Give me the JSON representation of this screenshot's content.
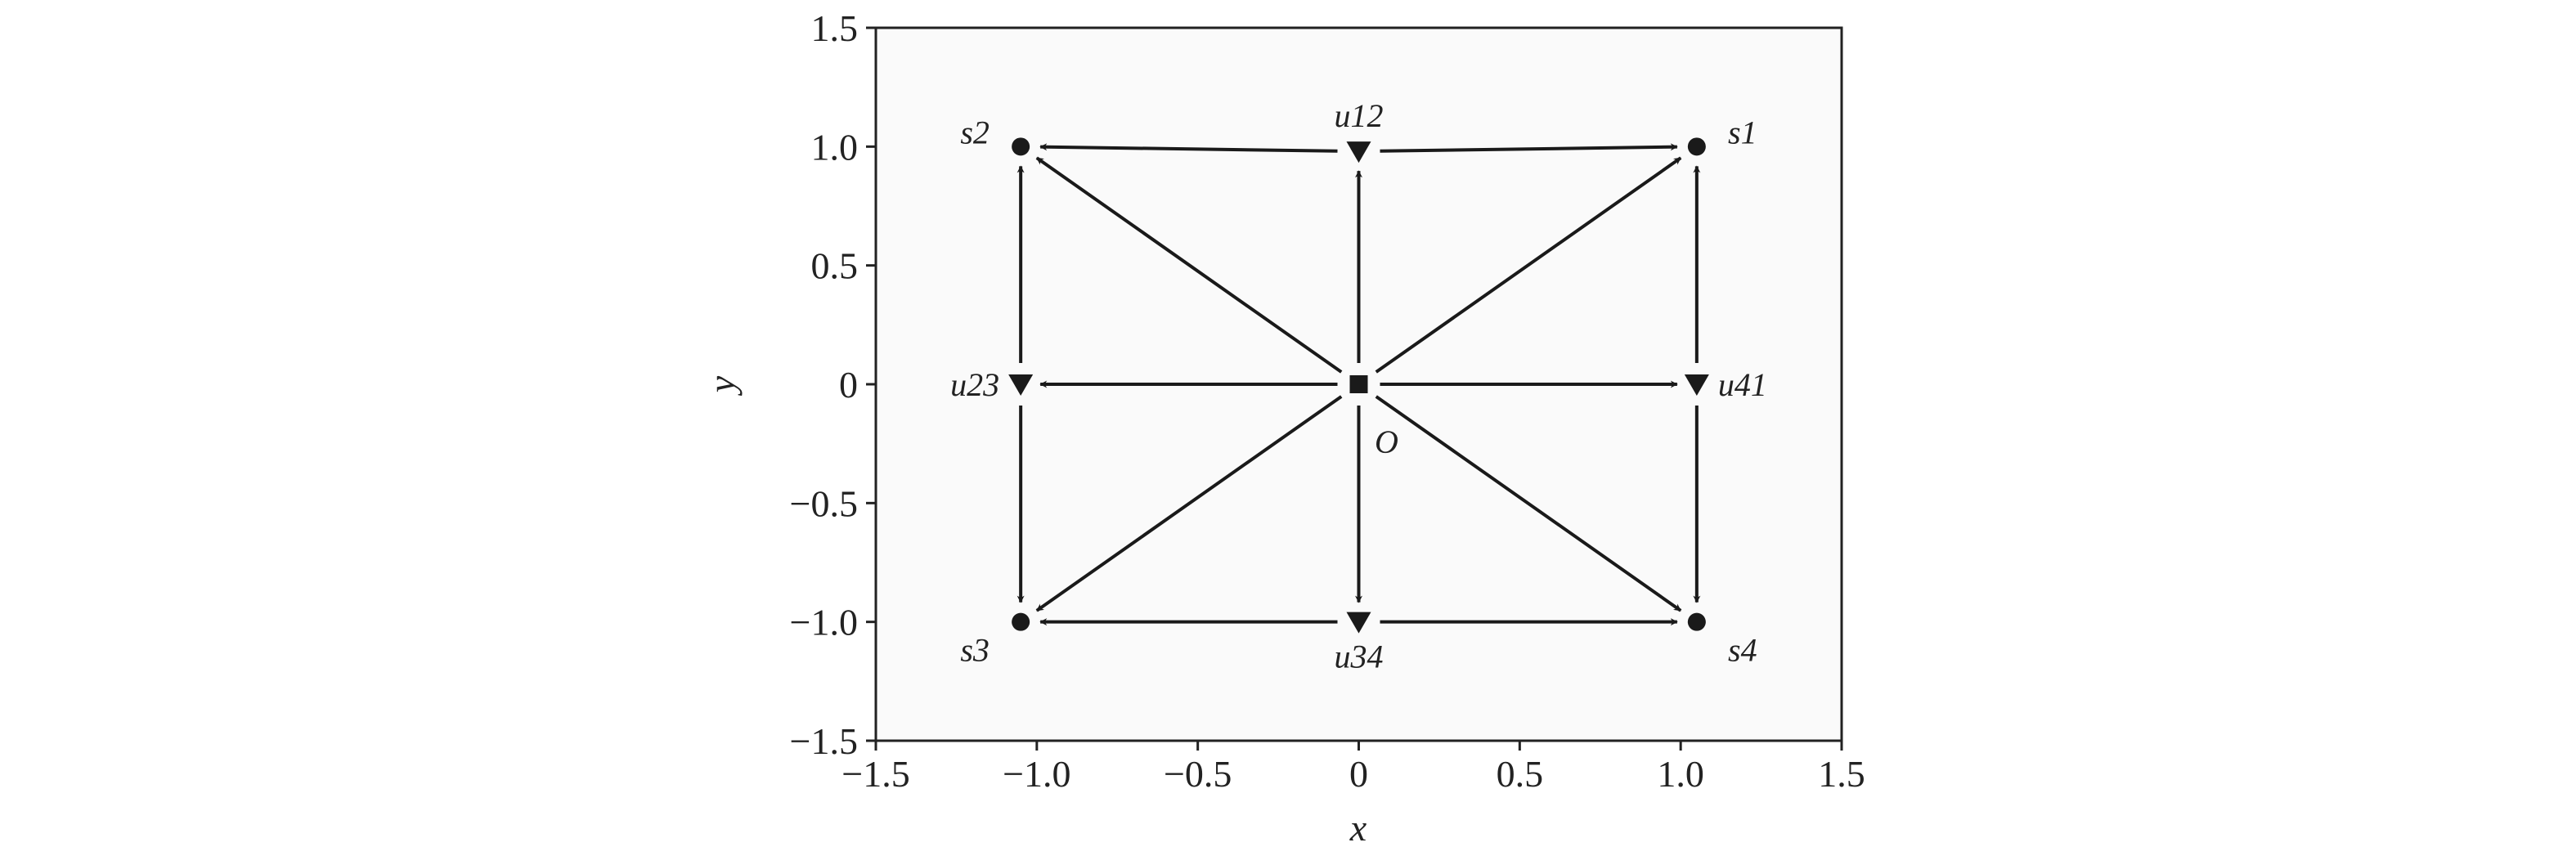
{
  "chart_data": {
    "type": "scatter",
    "x_label": "x",
    "y_label": "y",
    "xlim": [
      -1.5,
      1.5
    ],
    "ylim": [
      -1.5,
      1.5
    ],
    "xticks": [
      {
        "value": -1.5,
        "label": "−1.5"
      },
      {
        "value": -1.0,
        "label": "−1.0"
      },
      {
        "value": -0.5,
        "label": "−0.5"
      },
      0,
      0.5,
      {
        "value": 1.0,
        "label": "1.0"
      },
      1.5
    ],
    "yticks": [
      {
        "value": -1.5,
        "label": "−1.5"
      },
      {
        "value": -1.0,
        "label": "−1.0"
      },
      {
        "value": -0.5,
        "label": "−0.5"
      },
      0,
      0.5,
      {
        "value": 1.0,
        "label": "1.0"
      },
      1.5
    ],
    "color": "#1a1a1a",
    "points": [
      {
        "label": "O",
        "x": 0,
        "y": 0,
        "marker": "square"
      },
      {
        "label": "s1",
        "x": 1.05,
        "y": 1.0,
        "marker": "circle"
      },
      {
        "label": "s2",
        "x": -1.05,
        "y": 1.0,
        "marker": "circle"
      },
      {
        "label": "s3",
        "x": -1.05,
        "y": -1.0,
        "marker": "circle"
      },
      {
        "label": "s4",
        "x": 1.05,
        "y": -1.0,
        "marker": "circle"
      },
      {
        "label": "u12",
        "x": 0,
        "y": 0.98,
        "marker": "triangle"
      },
      {
        "label": "u23",
        "x": -1.05,
        "y": 0,
        "marker": "triangle"
      },
      {
        "label": "u34",
        "x": 0,
        "y": -1.0,
        "marker": "triangle"
      },
      {
        "label": "u41",
        "x": 1.05,
        "y": 0,
        "marker": "triangle"
      }
    ],
    "arrows": [
      {
        "from": "O",
        "to": "s1"
      },
      {
        "from": "O",
        "to": "s2"
      },
      {
        "from": "O",
        "to": "s3"
      },
      {
        "from": "O",
        "to": "s4"
      },
      {
        "from": "O",
        "to": "u12"
      },
      {
        "from": "O",
        "to": "u23"
      },
      {
        "from": "O",
        "to": "u34"
      },
      {
        "from": "O",
        "to": "u41"
      },
      {
        "from": "u12",
        "to": "s1"
      },
      {
        "from": "u12",
        "to": "s2"
      },
      {
        "from": "u23",
        "to": "s2"
      },
      {
        "from": "u23",
        "to": "s3"
      },
      {
        "from": "u34",
        "to": "s3"
      },
      {
        "from": "u34",
        "to": "s4"
      },
      {
        "from": "u41",
        "to": "s1"
      },
      {
        "from": "u41",
        "to": "s4"
      }
    ]
  }
}
